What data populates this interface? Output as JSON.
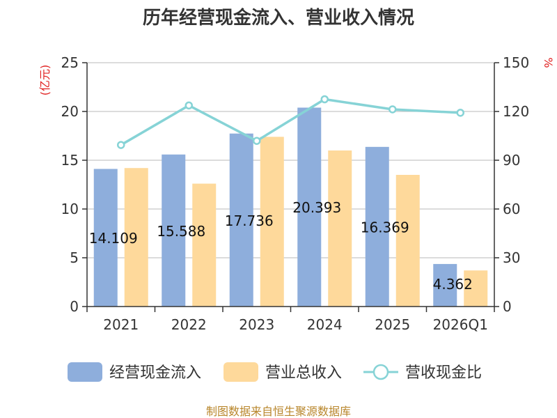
{
  "chart_data": {
    "type": "bar",
    "title": "历年经营现金流入、营业收入情况",
    "categories": [
      "2021",
      "2022",
      "2023",
      "2024",
      "2025",
      "2026Q1"
    ],
    "series": [
      {
        "name": "经营现金流入",
        "type": "bar",
        "axis": "left",
        "color": "#8eaedc",
        "values": [
          14.109,
          15.588,
          17.736,
          20.393,
          16.369,
          4.362
        ],
        "labels": [
          "14.109",
          "15.588",
          "17.736",
          "20.393",
          "16.369",
          "4.362"
        ]
      },
      {
        "name": "营业总收入",
        "type": "bar",
        "axis": "left",
        "color": "#fed99b",
        "values": [
          14.2,
          12.6,
          17.4,
          16.0,
          13.5,
          3.7
        ]
      },
      {
        "name": "营收现金比",
        "type": "line",
        "axis": "right",
        "color": "#86d3d6",
        "values": [
          99.4,
          123.7,
          101.9,
          127.5,
          121.3,
          119.2
        ]
      }
    ],
    "y_left": {
      "label": "(亿元)",
      "min": 0,
      "max": 25,
      "ticks": [
        0,
        5,
        10,
        15,
        20,
        25
      ]
    },
    "y_right": {
      "label": "%",
      "min": 0,
      "max": 150,
      "ticks": [
        0,
        30,
        60,
        90,
        120,
        150
      ]
    },
    "grid": true,
    "legend_position": "bottom",
    "source": "制图数据来自恒生聚源数据库"
  }
}
